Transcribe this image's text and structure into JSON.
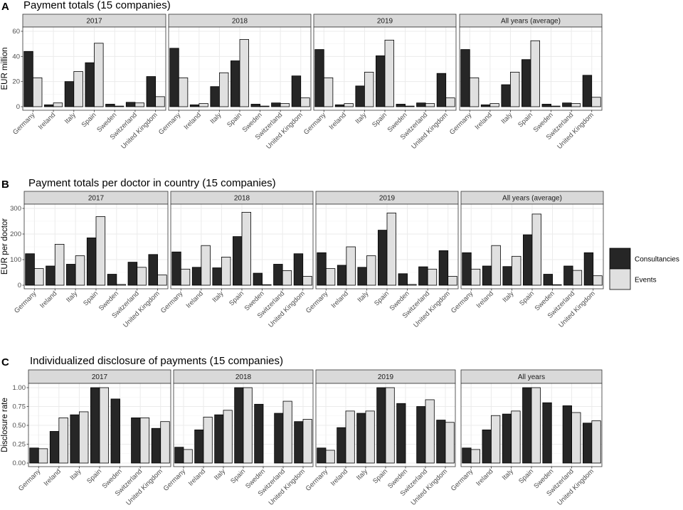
{
  "colors": {
    "consultancies": "#262626",
    "events": "#e0e0e0",
    "bar_outline": "#000000",
    "strip_fill": "#d9d9d9",
    "grid": "#ebebeb"
  },
  "legend": {
    "items": [
      {
        "label": "Consultancies",
        "color": "#262626"
      },
      {
        "label": "Events",
        "color": "#e0e0e0"
      }
    ]
  },
  "chart_data": [
    {
      "type": "bar",
      "panel_label": "A",
      "title": "Payment totals (15 companies)",
      "ylabel": "EUR million",
      "xlabel": "",
      "ylim": [
        0,
        60
      ],
      "yticks": [
        0,
        20,
        40,
        60
      ],
      "categories": [
        "Germany",
        "Ireland",
        "Italy",
        "Spain",
        "Sweden",
        "Switzerland",
        "United Kingdom"
      ],
      "grid": true,
      "facets": [
        {
          "name": "2017",
          "series": [
            {
              "name": "Consultancies",
              "values": [
                44,
                1.5,
                20,
                35,
                2,
                3.5,
                24
              ]
            },
            {
              "name": "Events",
              "values": [
                23,
                3,
                28,
                50.5,
                0.5,
                3,
                8
              ]
            }
          ]
        },
        {
          "name": "2018",
          "series": [
            {
              "name": "Consultancies",
              "values": [
                46.5,
                1.5,
                16,
                36.5,
                2,
                3,
                24.5
              ]
            },
            {
              "name": "Events",
              "values": [
                23,
                2.5,
                27,
                53.5,
                0.5,
                2.5,
                7
              ]
            }
          ]
        },
        {
          "name": "2019",
          "series": [
            {
              "name": "Consultancies",
              "values": [
                45.5,
                1.5,
                16.5,
                40.5,
                2,
                3,
                26.5
              ]
            },
            {
              "name": "Events",
              "values": [
                23,
                2.5,
                27.5,
                53,
                0.5,
                2.5,
                7
              ]
            }
          ]
        },
        {
          "name": "All years (average)",
          "series": [
            {
              "name": "Consultancies",
              "values": [
                45.5,
                1.5,
                17.5,
                37.5,
                2,
                3,
                25
              ]
            },
            {
              "name": "Events",
              "values": [
                23,
                2.5,
                27.5,
                52.5,
                0.5,
                2.5,
                7.5
              ]
            }
          ]
        }
      ]
    },
    {
      "type": "bar",
      "panel_label": "B",
      "title": "Payment totals per doctor in country (15 companies)",
      "ylabel": "EUR per doctor",
      "xlabel": "",
      "ylim": [
        0,
        300
      ],
      "yticks": [
        0,
        100,
        200,
        300
      ],
      "categories": [
        "Germany",
        "Ireland",
        "Italy",
        "Spain",
        "Sweden",
        "Switzerland",
        "United Kingdom"
      ],
      "grid": true,
      "facets": [
        {
          "name": "2017",
          "series": [
            {
              "name": "Consultancies",
              "values": [
                123,
                75,
                82,
                185,
                43,
                90,
                120
              ]
            },
            {
              "name": "Events",
              "values": [
                65,
                160,
                115,
                268,
                3,
                70,
                40
              ]
            }
          ]
        },
        {
          "name": "2018",
          "series": [
            {
              "name": "Consultancies",
              "values": [
                130,
                70,
                68,
                190,
                47,
                82,
                123
              ]
            },
            {
              "name": "Events",
              "values": [
                63,
                155,
                110,
                285,
                2,
                57,
                35
              ]
            }
          ]
        },
        {
          "name": "2019",
          "series": [
            {
              "name": "Consultancies",
              "values": [
                127,
                78,
                70,
                215,
                45,
                72,
                135
              ]
            },
            {
              "name": "Events",
              "values": [
                65,
                150,
                115,
                282,
                3,
                63,
                35
              ]
            }
          ]
        },
        {
          "name": "All years (average)",
          "series": [
            {
              "name": "Consultancies",
              "values": [
                127,
                75,
                73,
                197,
                43,
                75,
                127
              ]
            },
            {
              "name": "Events",
              "values": [
                63,
                155,
                113,
                278,
                2,
                58,
                37
              ]
            }
          ]
        }
      ]
    },
    {
      "type": "bar",
      "panel_label": "C",
      "title": "Individualized disclosure of payments (15 companies)",
      "ylabel": "Disclosure rate",
      "xlabel": "",
      "ylim": [
        0,
        1
      ],
      "yticks": [
        0,
        0.25,
        0.5,
        0.75,
        1
      ],
      "ytick_labels": [
        "0.00",
        "0.25",
        "0.50",
        "0.75",
        "1.00"
      ],
      "categories": [
        "Germany",
        "Ireland",
        "Italy",
        "Spain",
        "Sweden",
        "Switzerland",
        "United Kingdom"
      ],
      "grid": true,
      "facets": [
        {
          "name": "2017",
          "series": [
            {
              "name": "Consultancies",
              "values": [
                0.2,
                0.42,
                0.64,
                1.0,
                0.85,
                0.6,
                0.46
              ]
            },
            {
              "name": "Events",
              "values": [
                0.19,
                0.6,
                0.68,
                1.0,
                null,
                0.6,
                0.55
              ]
            }
          ]
        },
        {
          "name": "2018",
          "series": [
            {
              "name": "Consultancies",
              "values": [
                0.21,
                0.44,
                0.64,
                1.0,
                0.78,
                0.66,
                0.55
              ]
            },
            {
              "name": "Events",
              "values": [
                0.18,
                0.61,
                0.7,
                1.0,
                null,
                0.82,
                0.58
              ]
            }
          ]
        },
        {
          "name": "2019",
          "series": [
            {
              "name": "Consultancies",
              "values": [
                0.2,
                0.47,
                0.66,
                1.0,
                0.79,
                0.75,
                0.57
              ]
            },
            {
              "name": "Events",
              "values": [
                0.17,
                0.69,
                0.69,
                1.0,
                null,
                0.84,
                0.54
              ]
            }
          ]
        },
        {
          "name": "All years",
          "series": [
            {
              "name": "Consultancies",
              "values": [
                0.2,
                0.44,
                0.65,
                1.0,
                0.8,
                0.76,
                0.53
              ]
            },
            {
              "name": "Events",
              "values": [
                0.18,
                0.63,
                0.69,
                1.0,
                null,
                0.67,
                0.56
              ]
            }
          ]
        }
      ]
    }
  ]
}
